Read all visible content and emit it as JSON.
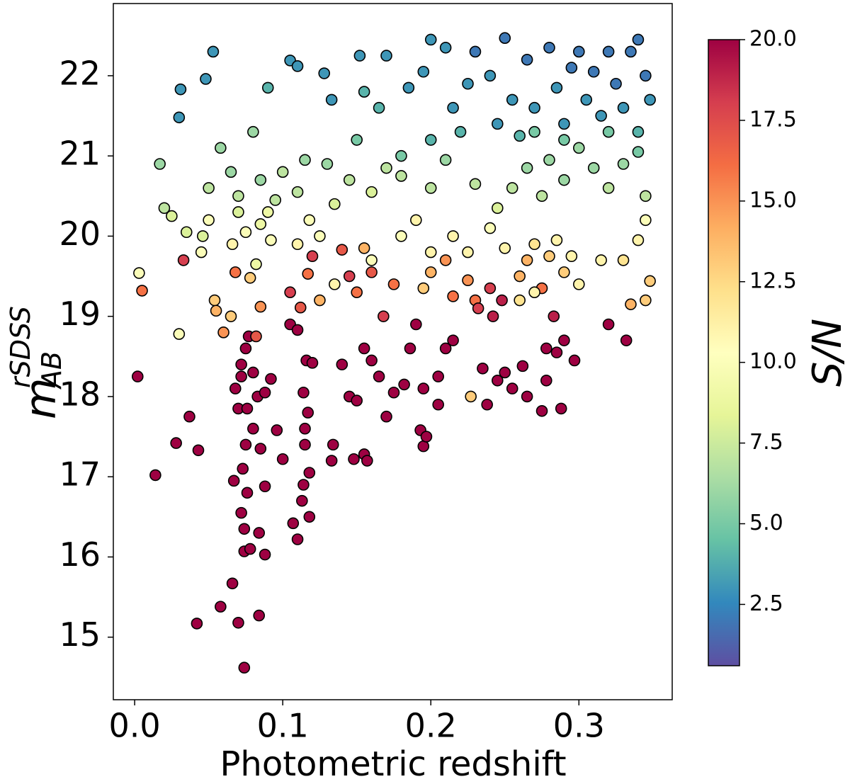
{
  "chart_data": {
    "type": "scatter",
    "x_label": "Photometric redshift",
    "y_label": "m",
    "y_label_sub": "AB",
    "y_label_sup": "rSDSS",
    "colorbar_label": "S/N",
    "xlim": [
      -0.0144,
      0.363
    ],
    "xticks": [
      0.0,
      0.1,
      0.2,
      0.3
    ],
    "ylim": [
      14.22,
      22.9
    ],
    "yticks": [
      15,
      16,
      17,
      18,
      19,
      20,
      21,
      22
    ],
    "clim": [
      0.6,
      20
    ],
    "cticks": [
      2.5,
      5.0,
      7.5,
      10.0,
      12.5,
      15.0,
      17.5,
      20.0
    ],
    "colormap": [
      "#5e4fa2",
      "#3288bd",
      "#66c2a5",
      "#abdda4",
      "#e6f598",
      "#ffffbf",
      "#fee08b",
      "#fdae61",
      "#f46d43",
      "#d53e4f",
      "#9e0142"
    ],
    "edge_color": "#000000",
    "x": [
      0.002,
      0.014,
      0.028,
      0.037,
      0.043,
      0.042,
      0.058,
      0.066,
      0.067,
      0.07,
      0.074,
      0.084,
      0.072,
      0.074,
      0.074,
      0.078,
      0.084,
      0.088,
      0.076,
      0.073,
      0.075,
      0.088,
      0.07,
      0.076,
      0.08,
      0.085,
      0.096,
      0.1,
      0.068,
      0.072,
      0.075,
      0.08,
      0.083,
      0.088,
      0.092,
      0.077,
      0.072,
      0.107,
      0.11,
      0.113,
      0.114,
      0.115,
      0.118,
      0.115,
      0.114,
      0.117,
      0.116,
      0.105,
      0.11,
      0.118,
      0.12,
      0.133,
      0.134,
      0.14,
      0.145,
      0.15,
      0.155,
      0.157,
      0.148,
      0.155,
      0.16,
      0.165,
      0.17,
      0.175,
      0.182,
      0.186,
      0.19,
      0.193,
      0.195,
      0.197,
      0.195,
      0.205,
      0.21,
      0.215,
      0.205,
      0.235,
      0.238,
      0.245,
      0.25,
      0.255,
      0.262,
      0.265,
      0.275,
      0.278,
      0.288,
      0.285,
      0.297,
      0.29,
      0.32,
      0.332,
      0.278,
      0.283,
      0.242,
      0.248,
      0.24,
      0.23,
      0.005,
      0.003,
      0.054,
      0.055,
      0.068,
      0.078,
      0.085,
      0.082,
      0.06,
      0.065,
      0.033,
      0.105,
      0.112,
      0.117,
      0.125,
      0.12,
      0.145,
      0.15,
      0.16,
      0.168,
      0.175,
      0.14,
      0.155,
      0.195,
      0.2,
      0.21,
      0.215,
      0.225,
      0.232,
      0.26,
      0.265,
      0.275,
      0.28,
      0.29,
      0.27,
      0.335,
      0.345,
      0.348,
      0.227,
      0.03,
      0.025,
      0.035,
      0.046,
      0.05,
      0.045,
      0.066,
      0.07,
      0.075,
      0.082,
      0.085,
      0.09,
      0.092,
      0.11,
      0.118,
      0.125,
      0.135,
      0.16,
      0.18,
      0.19,
      0.2,
      0.215,
      0.225,
      0.24,
      0.25,
      0.26,
      0.27,
      0.285,
      0.295,
      0.3,
      0.315,
      0.33,
      0.34,
      0.345,
      0.02,
      0.017,
      0.05,
      0.058,
      0.065,
      0.07,
      0.08,
      0.085,
      0.095,
      0.1,
      0.11,
      0.115,
      0.135,
      0.145,
      0.16,
      0.17,
      0.18,
      0.2,
      0.21,
      0.23,
      0.245,
      0.255,
      0.265,
      0.275,
      0.28,
      0.29,
      0.3,
      0.31,
      0.32,
      0.33,
      0.34,
      0.345,
      0.29,
      0.27,
      0.32,
      0.18,
      0.15,
      0.13,
      0.031,
      0.03,
      0.048,
      0.053,
      0.105,
      0.11,
      0.128,
      0.133,
      0.152,
      0.155,
      0.17,
      0.09,
      0.165,
      0.185,
      0.2,
      0.21,
      0.195,
      0.215,
      0.225,
      0.23,
      0.24,
      0.25,
      0.255,
      0.265,
      0.27,
      0.28,
      0.285,
      0.29,
      0.295,
      0.3,
      0.305,
      0.31,
      0.315,
      0.32,
      0.325,
      0.33,
      0.335,
      0.34,
      0.345,
      0.348,
      0.245,
      0.22,
      0.2,
      0.26,
      0.34
    ],
    "values": [
      18.25,
      17.02,
      17.42,
      17.75,
      17.33,
      15.17,
      15.38,
      15.67,
      16.95,
      15.18,
      14.62,
      15.27,
      16.55,
      16.07,
      16.35,
      16.1,
      16.3,
      16.03,
      16.8,
      17.1,
      17.4,
      16.88,
      17.85,
      17.85,
      17.6,
      17.35,
      17.58,
      17.22,
      18.1,
      18.4,
      18.6,
      18.3,
      18.0,
      18.05,
      18.22,
      18.75,
      18.25,
      16.42,
      16.22,
      16.7,
      16.9,
      17.4,
      17.05,
      17.6,
      18.05,
      17.8,
      18.45,
      18.9,
      18.83,
      16.5,
      18.42,
      17.2,
      17.4,
      18.4,
      18.0,
      17.95,
      17.28,
      17.2,
      17.22,
      18.6,
      18.45,
      18.25,
      17.75,
      18.05,
      18.15,
      18.6,
      18.9,
      17.58,
      17.38,
      17.5,
      18.1,
      18.25,
      18.6,
      18.7,
      17.9,
      18.35,
      17.9,
      18.2,
      18.3,
      18.1,
      18.38,
      18.0,
      17.82,
      18.2,
      17.85,
      18.55,
      18.45,
      18.7,
      18.9,
      18.7,
      18.6,
      19.0,
      19.0,
      19.2,
      19.35,
      19.2,
      19.32,
      19.54,
      19.2,
      19.07,
      19.55,
      19.48,
      19.12,
      18.75,
      18.8,
      19.0,
      19.7,
      19.3,
      19.11,
      19.53,
      19.2,
      19.75,
      19.5,
      19.3,
      19.55,
      19.0,
      19.4,
      19.83,
      19.85,
      19.35,
      19.55,
      19.7,
      19.25,
      19.45,
      19.1,
      19.5,
      19.7,
      19.35,
      19.75,
      19.55,
      19.9,
      19.15,
      19.2,
      19.44,
      18.0,
      18.78,
      20.25,
      20.05,
      20.0,
      20.2,
      19.8,
      19.9,
      20.3,
      20.05,
      19.65,
      20.15,
      20.3,
      19.95,
      19.9,
      20.2,
      20.0,
      19.4,
      19.7,
      20.0,
      20.2,
      19.8,
      20.0,
      19.8,
      20.1,
      19.85,
      19.2,
      19.3,
      19.95,
      19.75,
      19.4,
      19.7,
      19.7,
      19.95,
      20.2,
      20.35,
      20.9,
      20.6,
      21.1,
      20.8,
      20.5,
      21.3,
      20.7,
      20.45,
      20.8,
      20.55,
      20.95,
      20.4,
      20.7,
      20.55,
      20.85,
      20.75,
      20.6,
      20.95,
      20.65,
      20.35,
      20.6,
      20.85,
      20.5,
      20.95,
      20.7,
      21.1,
      20.85,
      20.6,
      20.9,
      21.05,
      20.5,
      21.2,
      21.3,
      21.3,
      21.0,
      21.2,
      20.9,
      21.83,
      21.48,
      21.96,
      22.3,
      22.19,
      22.12,
      22.03,
      21.7,
      22.25,
      21.8,
      22.25,
      21.85,
      21.6,
      21.85,
      22.45,
      22.35,
      22.05,
      21.6,
      21.9,
      22.3,
      22.0,
      22.47,
      21.7,
      22.2,
      21.6,
      22.35,
      21.85,
      21.4,
      22.1,
      22.3,
      21.7,
      22.05,
      21.5,
      22.3,
      21.9,
      21.6,
      22.3,
      22.45,
      22.0,
      21.7,
      21.4,
      21.3,
      21.2,
      21.25,
      21.3
    ],
    "color_values": [
      20,
      20,
      20,
      20,
      20,
      20,
      20,
      20,
      20,
      20,
      20,
      20,
      20,
      20,
      20,
      20,
      20,
      20,
      20,
      20,
      20,
      20,
      20,
      20,
      20,
      20,
      20,
      20,
      20,
      20,
      20,
      20,
      20,
      20,
      20,
      20,
      20,
      20,
      20,
      20,
      20,
      20,
      20,
      20,
      20,
      20,
      20,
      20,
      20,
      20,
      20,
      20,
      20,
      20,
      20,
      20,
      20,
      20,
      20,
      20,
      20,
      20,
      20,
      20,
      20,
      20,
      20,
      20,
      20,
      20,
      20,
      20,
      20,
      20,
      20,
      20,
      20,
      20,
      20,
      20,
      20,
      20,
      20,
      20,
      20,
      20,
      20,
      20,
      20,
      20,
      20,
      19,
      19,
      19,
      18,
      16,
      16,
      10,
      13,
      14,
      16,
      13,
      15,
      17,
      15,
      13,
      18,
      18,
      17,
      16,
      14,
      18,
      18,
      16,
      17,
      18,
      16,
      17,
      14,
      13,
      14,
      15,
      16,
      15,
      18,
      14,
      14,
      16,
      13,
      13,
      12,
      14,
      13,
      13,
      13,
      10,
      8,
      8,
      8,
      10,
      10,
      11,
      8,
      10,
      9,
      9,
      9,
      10,
      11,
      10,
      10,
      11,
      10,
      10,
      11,
      11,
      11,
      11,
      10,
      11,
      12,
      11,
      11,
      11,
      11,
      11,
      12,
      11,
      10,
      7,
      6,
      7,
      6,
      6,
      7,
      6,
      6,
      7,
      7,
      7,
      6,
      8,
      7,
      8,
      7,
      7,
      7,
      6,
      7,
      8,
      7,
      6,
      7,
      6,
      6,
      6,
      6,
      7,
      6,
      5,
      7,
      5,
      5,
      5,
      5,
      5,
      6,
      3,
      3,
      3,
      3,
      3,
      3,
      3,
      3,
      3,
      4,
      3,
      4,
      4,
      3,
      3,
      3,
      3,
      3,
      3,
      2,
      3,
      2,
      3,
      2,
      3,
      2,
      3,
      3,
      2,
      2,
      3,
      2,
      3,
      2,
      2,
      3,
      2,
      2,
      2,
      3,
      3,
      4,
      4,
      4,
      4
    ]
  }
}
